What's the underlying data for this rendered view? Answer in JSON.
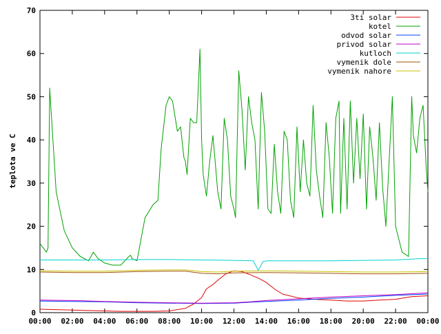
{
  "chart_data": {
    "type": "line",
    "ylabel": "teplota ve C",
    "ylim": [
      0,
      70
    ],
    "y_ticks": [
      "0",
      "10",
      "20",
      "30",
      "40",
      "50",
      "60",
      "70"
    ],
    "x_ticks": [
      "00:00",
      "02:00",
      "04:00",
      "06:00",
      "08:00",
      "10:00",
      "12:00",
      "14:00",
      "16:00",
      "18:00",
      "20:00",
      "22:00",
      "00:00"
    ],
    "xlim": [
      0,
      24
    ],
    "grid": false,
    "legend_position": "top-right",
    "series": [
      {
        "name": "3ti solar",
        "color": "#e00000",
        "x": [
          0,
          1,
          2,
          3,
          4,
          5,
          6,
          7,
          8,
          9,
          9.5,
          10,
          10.3,
          10.7,
          11,
          11.5,
          12,
          12.5,
          13,
          13.5,
          14,
          14.5,
          15,
          16,
          17,
          18,
          19,
          20,
          21,
          22,
          23,
          24
        ],
        "y": [
          0.8,
          0.7,
          0.6,
          0.5,
          0.4,
          0.3,
          0.3,
          0.3,
          0.4,
          1.0,
          2.0,
          3.5,
          5.5,
          6.5,
          7.5,
          9.0,
          9.7,
          9.5,
          8.8,
          8.0,
          7.0,
          5.5,
          4.3,
          3.4,
          3.1,
          2.9,
          2.7,
          2.7,
          2.9,
          3.1,
          3.7,
          3.9
        ]
      },
      {
        "name": "kotel",
        "color": "#00a000",
        "x": [
          0,
          0.2,
          0.4,
          0.5,
          0.6,
          0.8,
          1.0,
          1.5,
          2,
          2.5,
          3.0,
          3.3,
          3.6,
          4,
          4.5,
          5,
          5.5,
          5.6,
          5.7,
          6,
          6.5,
          7,
          7.3,
          7.5,
          7.8,
          8,
          8.2,
          8.5,
          8.7,
          8.9,
          9.0,
          9.1,
          9.3,
          9.5,
          9.7,
          9.9,
          10.0,
          10.1,
          10.3,
          10.5,
          10.7,
          11.0,
          11.2,
          11.4,
          11.6,
          11.8,
          12.0,
          12.1,
          12.3,
          12.5,
          12.7,
          12.9,
          13.1,
          13.3,
          13.5,
          13.7,
          13.9,
          14.1,
          14.3,
          14.5,
          14.7,
          14.9,
          15.1,
          15.3,
          15.5,
          15.7,
          15.9,
          16.1,
          16.3,
          16.5,
          16.7,
          16.9,
          17.1,
          17.3,
          17.5,
          17.7,
          17.9,
          18.1,
          18.3,
          18.5,
          18.6,
          18.8,
          19.0,
          19.2,
          19.4,
          19.6,
          19.8,
          20.0,
          20.2,
          20.4,
          20.6,
          20.8,
          21.0,
          21.2,
          21.4,
          21.6,
          21.8,
          22.0,
          22.4,
          22.8,
          23.0,
          23.1,
          23.3,
          23.5,
          23.7,
          23.9,
          24.0
        ],
        "y": [
          16,
          15,
          14,
          15,
          52,
          40,
          28,
          19,
          15,
          13,
          12,
          14,
          12.5,
          11.5,
          11,
          11,
          13,
          13.3,
          12.5,
          12,
          22,
          25,
          26,
          38,
          48,
          50,
          49,
          42,
          43,
          36,
          35,
          32,
          45,
          44,
          44,
          61,
          40,
          32,
          27,
          35,
          41,
          28,
          24,
          45,
          40,
          27,
          24,
          22,
          56,
          47,
          33,
          50,
          44,
          40,
          24,
          51,
          42,
          24,
          23,
          39,
          28,
          23,
          42,
          40,
          26,
          22,
          43,
          28,
          40,
          30,
          27,
          48,
          33,
          27,
          22,
          44,
          36,
          23,
          45,
          49,
          23,
          45,
          24,
          49,
          30,
          45,
          31,
          46,
          24,
          43,
          36,
          26,
          44,
          29,
          20,
          35,
          50,
          20,
          14,
          13,
          50,
          41,
          37,
          45,
          48,
          33,
          28
        ]
      },
      {
        "name": "odvod solar",
        "color": "#0040ff",
        "x": [
          0,
          2,
          4,
          6,
          8,
          10,
          12,
          13,
          14,
          16,
          18,
          20,
          22,
          24
        ],
        "y": [
          2.7,
          2.6,
          2.5,
          2.3,
          2.2,
          2.1,
          2.2,
          2.4,
          2.6,
          2.9,
          3.3,
          3.6,
          4.0,
          4.3
        ]
      },
      {
        "name": "privod solar",
        "color": "#c000c0",
        "x": [
          0,
          2,
          4,
          6,
          8,
          10,
          12,
          13,
          14,
          16,
          18,
          20,
          22,
          24
        ],
        "y": [
          2.9,
          2.8,
          2.6,
          2.4,
          2.3,
          2.2,
          2.3,
          2.5,
          2.8,
          3.2,
          3.6,
          3.9,
          4.2,
          4.6
        ]
      },
      {
        "name": "kutloch",
        "color": "#00d0d0",
        "x": [
          0,
          2,
          4,
          6,
          8,
          10,
          12,
          13.2,
          13.5,
          13.8,
          14,
          16,
          18,
          20,
          22,
          23.5,
          24
        ],
        "y": [
          12.2,
          12.2,
          12.2,
          12.3,
          12.3,
          12.2,
          12.1,
          12.0,
          9.8,
          11.8,
          12.0,
          12.0,
          12.0,
          12.1,
          12.2,
          12.5,
          12.5
        ]
      },
      {
        "name": "vymenik dole",
        "color": "#a05000",
        "x": [
          0,
          2,
          4,
          6,
          8,
          9,
          10,
          11,
          12,
          14,
          16,
          18,
          20,
          22,
          24
        ],
        "y": [
          9.4,
          9.3,
          9.3,
          9.5,
          9.6,
          9.6,
          9.1,
          9.0,
          9.2,
          9.3,
          9.2,
          9.1,
          9.0,
          9.0,
          9.1
        ]
      },
      {
        "name": "vymenik nahore",
        "color": "#c8c000",
        "x": [
          0,
          2,
          4,
          6,
          8,
          9,
          10,
          11,
          12,
          14,
          16,
          18,
          20,
          22,
          24
        ],
        "y": [
          9.7,
          9.6,
          9.6,
          9.8,
          9.9,
          9.9,
          9.5,
          9.4,
          9.6,
          9.7,
          9.6,
          9.5,
          9.4,
          9.4,
          9.5
        ]
      }
    ]
  }
}
